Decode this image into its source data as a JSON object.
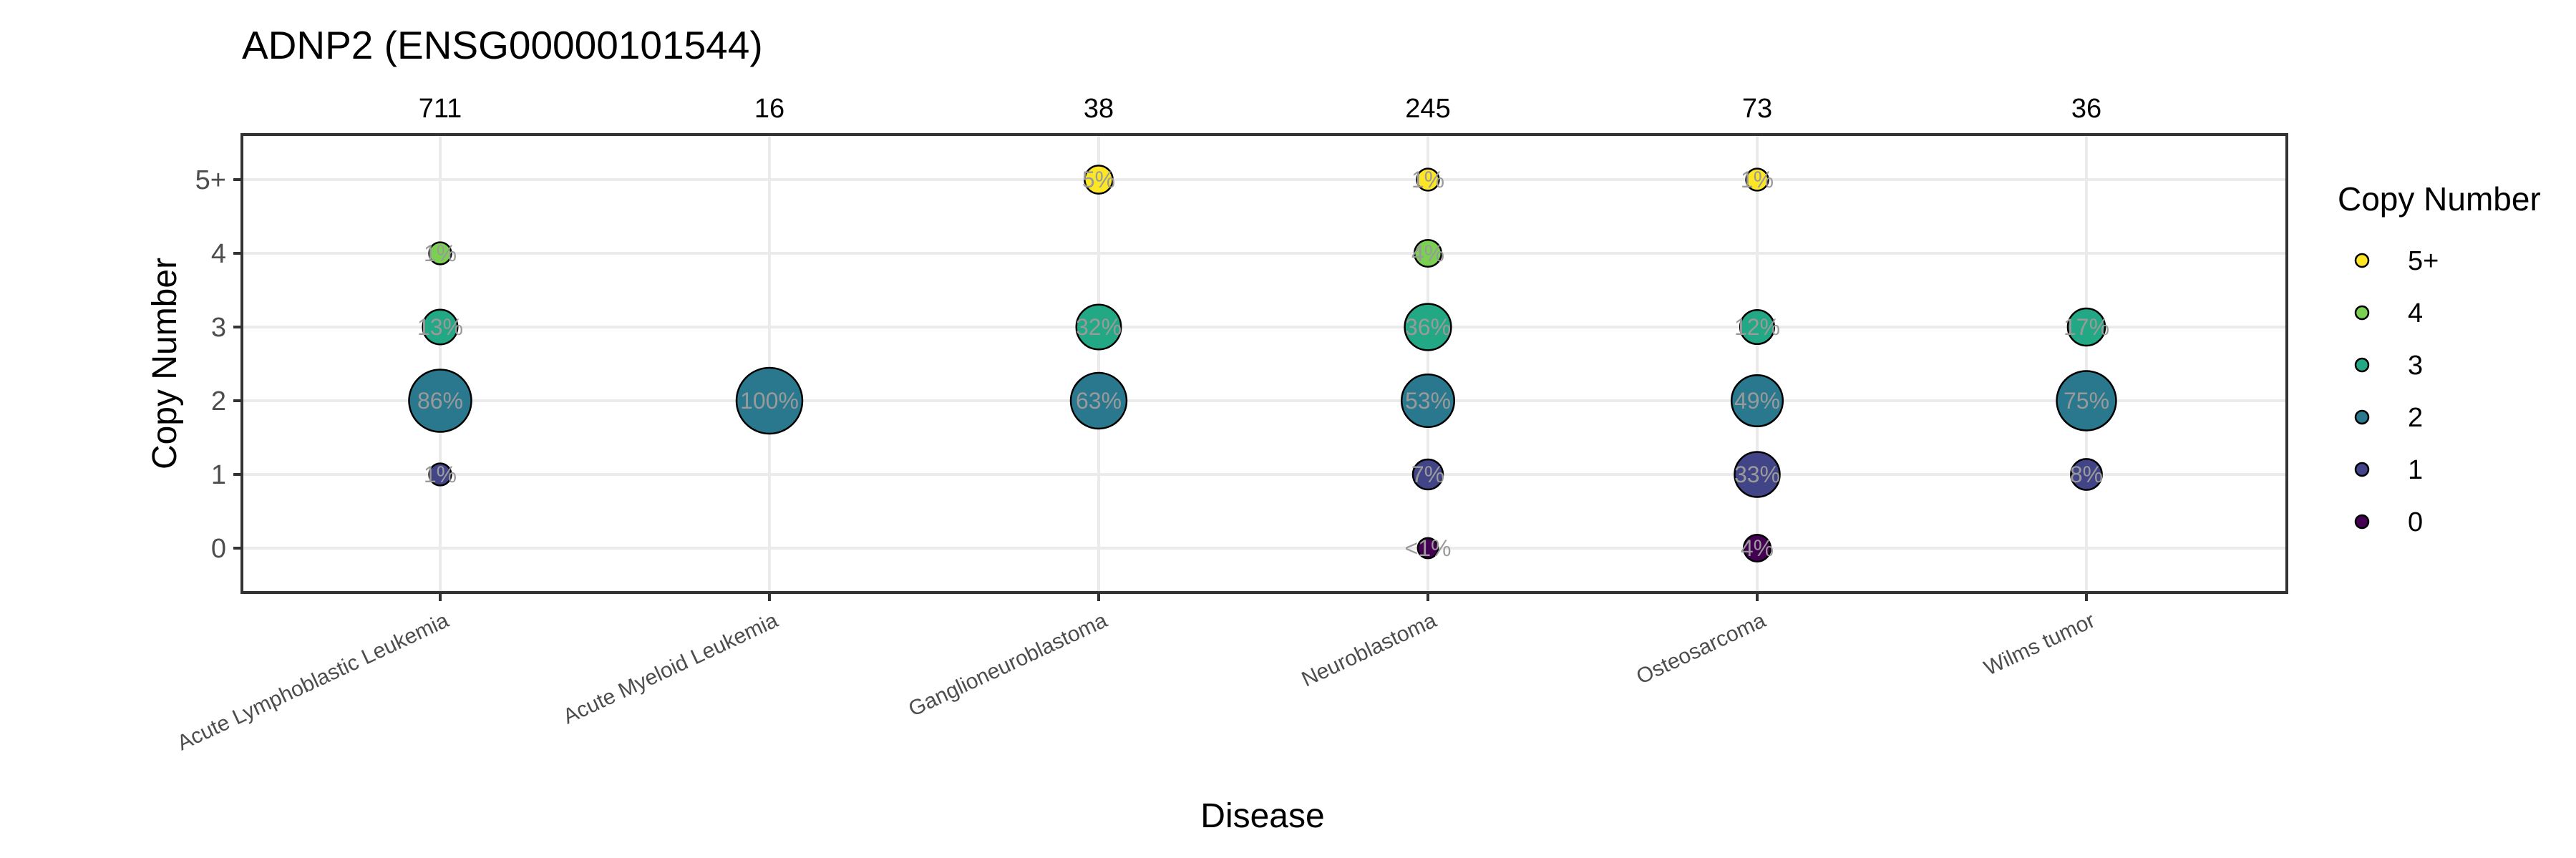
{
  "chart_data": {
    "type": "scatter",
    "title": "ADNP2 (ENSG00000101544)",
    "xlabel": "Disease",
    "ylabel": "Copy Number",
    "categories": [
      "Acute Lymphoblastic Leukemia",
      "Acute Myeloid Leukemia",
      "Ganglioneuroblastoma",
      "Neuroblastoma",
      "Osteosarcoma",
      "Wilms tumor"
    ],
    "counts": [
      "711",
      "16",
      "38",
      "245",
      "73",
      "36"
    ],
    "y_levels": [
      "0",
      "1",
      "2",
      "3",
      "4",
      "5+"
    ],
    "legend": {
      "title": "Copy Number",
      "entries": [
        {
          "label": "5+",
          "color": "#FDE725"
        },
        {
          "label": "4",
          "color": "#7AD151"
        },
        {
          "label": "3",
          "color": "#22A884"
        },
        {
          "label": "2",
          "color": "#2A788E"
        },
        {
          "label": "1",
          "color": "#414487"
        },
        {
          "label": "0",
          "color": "#440154"
        }
      ]
    },
    "points": [
      {
        "disease": "Acute Lymphoblastic Leukemia",
        "copy_number": "1",
        "percent": 1,
        "label": "1%"
      },
      {
        "disease": "Acute Lymphoblastic Leukemia",
        "copy_number": "2",
        "percent": 86,
        "label": "86%"
      },
      {
        "disease": "Acute Lymphoblastic Leukemia",
        "copy_number": "3",
        "percent": 13,
        "label": "13%"
      },
      {
        "disease": "Acute Lymphoblastic Leukemia",
        "copy_number": "4",
        "percent": 1,
        "label": "1%"
      },
      {
        "disease": "Acute Myeloid Leukemia",
        "copy_number": "2",
        "percent": 100,
        "label": "100%"
      },
      {
        "disease": "Ganglioneuroblastoma",
        "copy_number": "2",
        "percent": 63,
        "label": "63%"
      },
      {
        "disease": "Ganglioneuroblastoma",
        "copy_number": "3",
        "percent": 32,
        "label": "32%"
      },
      {
        "disease": "Ganglioneuroblastoma",
        "copy_number": "5+",
        "percent": 5,
        "label": "5%"
      },
      {
        "disease": "Neuroblastoma",
        "copy_number": "0",
        "percent": 0.4,
        "label": "<1%"
      },
      {
        "disease": "Neuroblastoma",
        "copy_number": "1",
        "percent": 7,
        "label": "7%"
      },
      {
        "disease": "Neuroblastoma",
        "copy_number": "2",
        "percent": 53,
        "label": "53%"
      },
      {
        "disease": "Neuroblastoma",
        "copy_number": "3",
        "percent": 36,
        "label": "36%"
      },
      {
        "disease": "Neuroblastoma",
        "copy_number": "4",
        "percent": 4,
        "label": "4%"
      },
      {
        "disease": "Neuroblastoma",
        "copy_number": "5+",
        "percent": 1,
        "label": "1%"
      },
      {
        "disease": "Osteosarcoma",
        "copy_number": "0",
        "percent": 4,
        "label": "4%"
      },
      {
        "disease": "Osteosarcoma",
        "copy_number": "1",
        "percent": 33,
        "label": "33%"
      },
      {
        "disease": "Osteosarcoma",
        "copy_number": "2",
        "percent": 49,
        "label": "49%"
      },
      {
        "disease": "Osteosarcoma",
        "copy_number": "3",
        "percent": 12,
        "label": "12%"
      },
      {
        "disease": "Osteosarcoma",
        "copy_number": "5+",
        "percent": 1,
        "label": "1%"
      },
      {
        "disease": "Wilms tumor",
        "copy_number": "1",
        "percent": 8,
        "label": "8%"
      },
      {
        "disease": "Wilms tumor",
        "copy_number": "2",
        "percent": 75,
        "label": "75%"
      },
      {
        "disease": "Wilms tumor",
        "copy_number": "3",
        "percent": 17,
        "label": "17%"
      }
    ],
    "grid": true
  }
}
